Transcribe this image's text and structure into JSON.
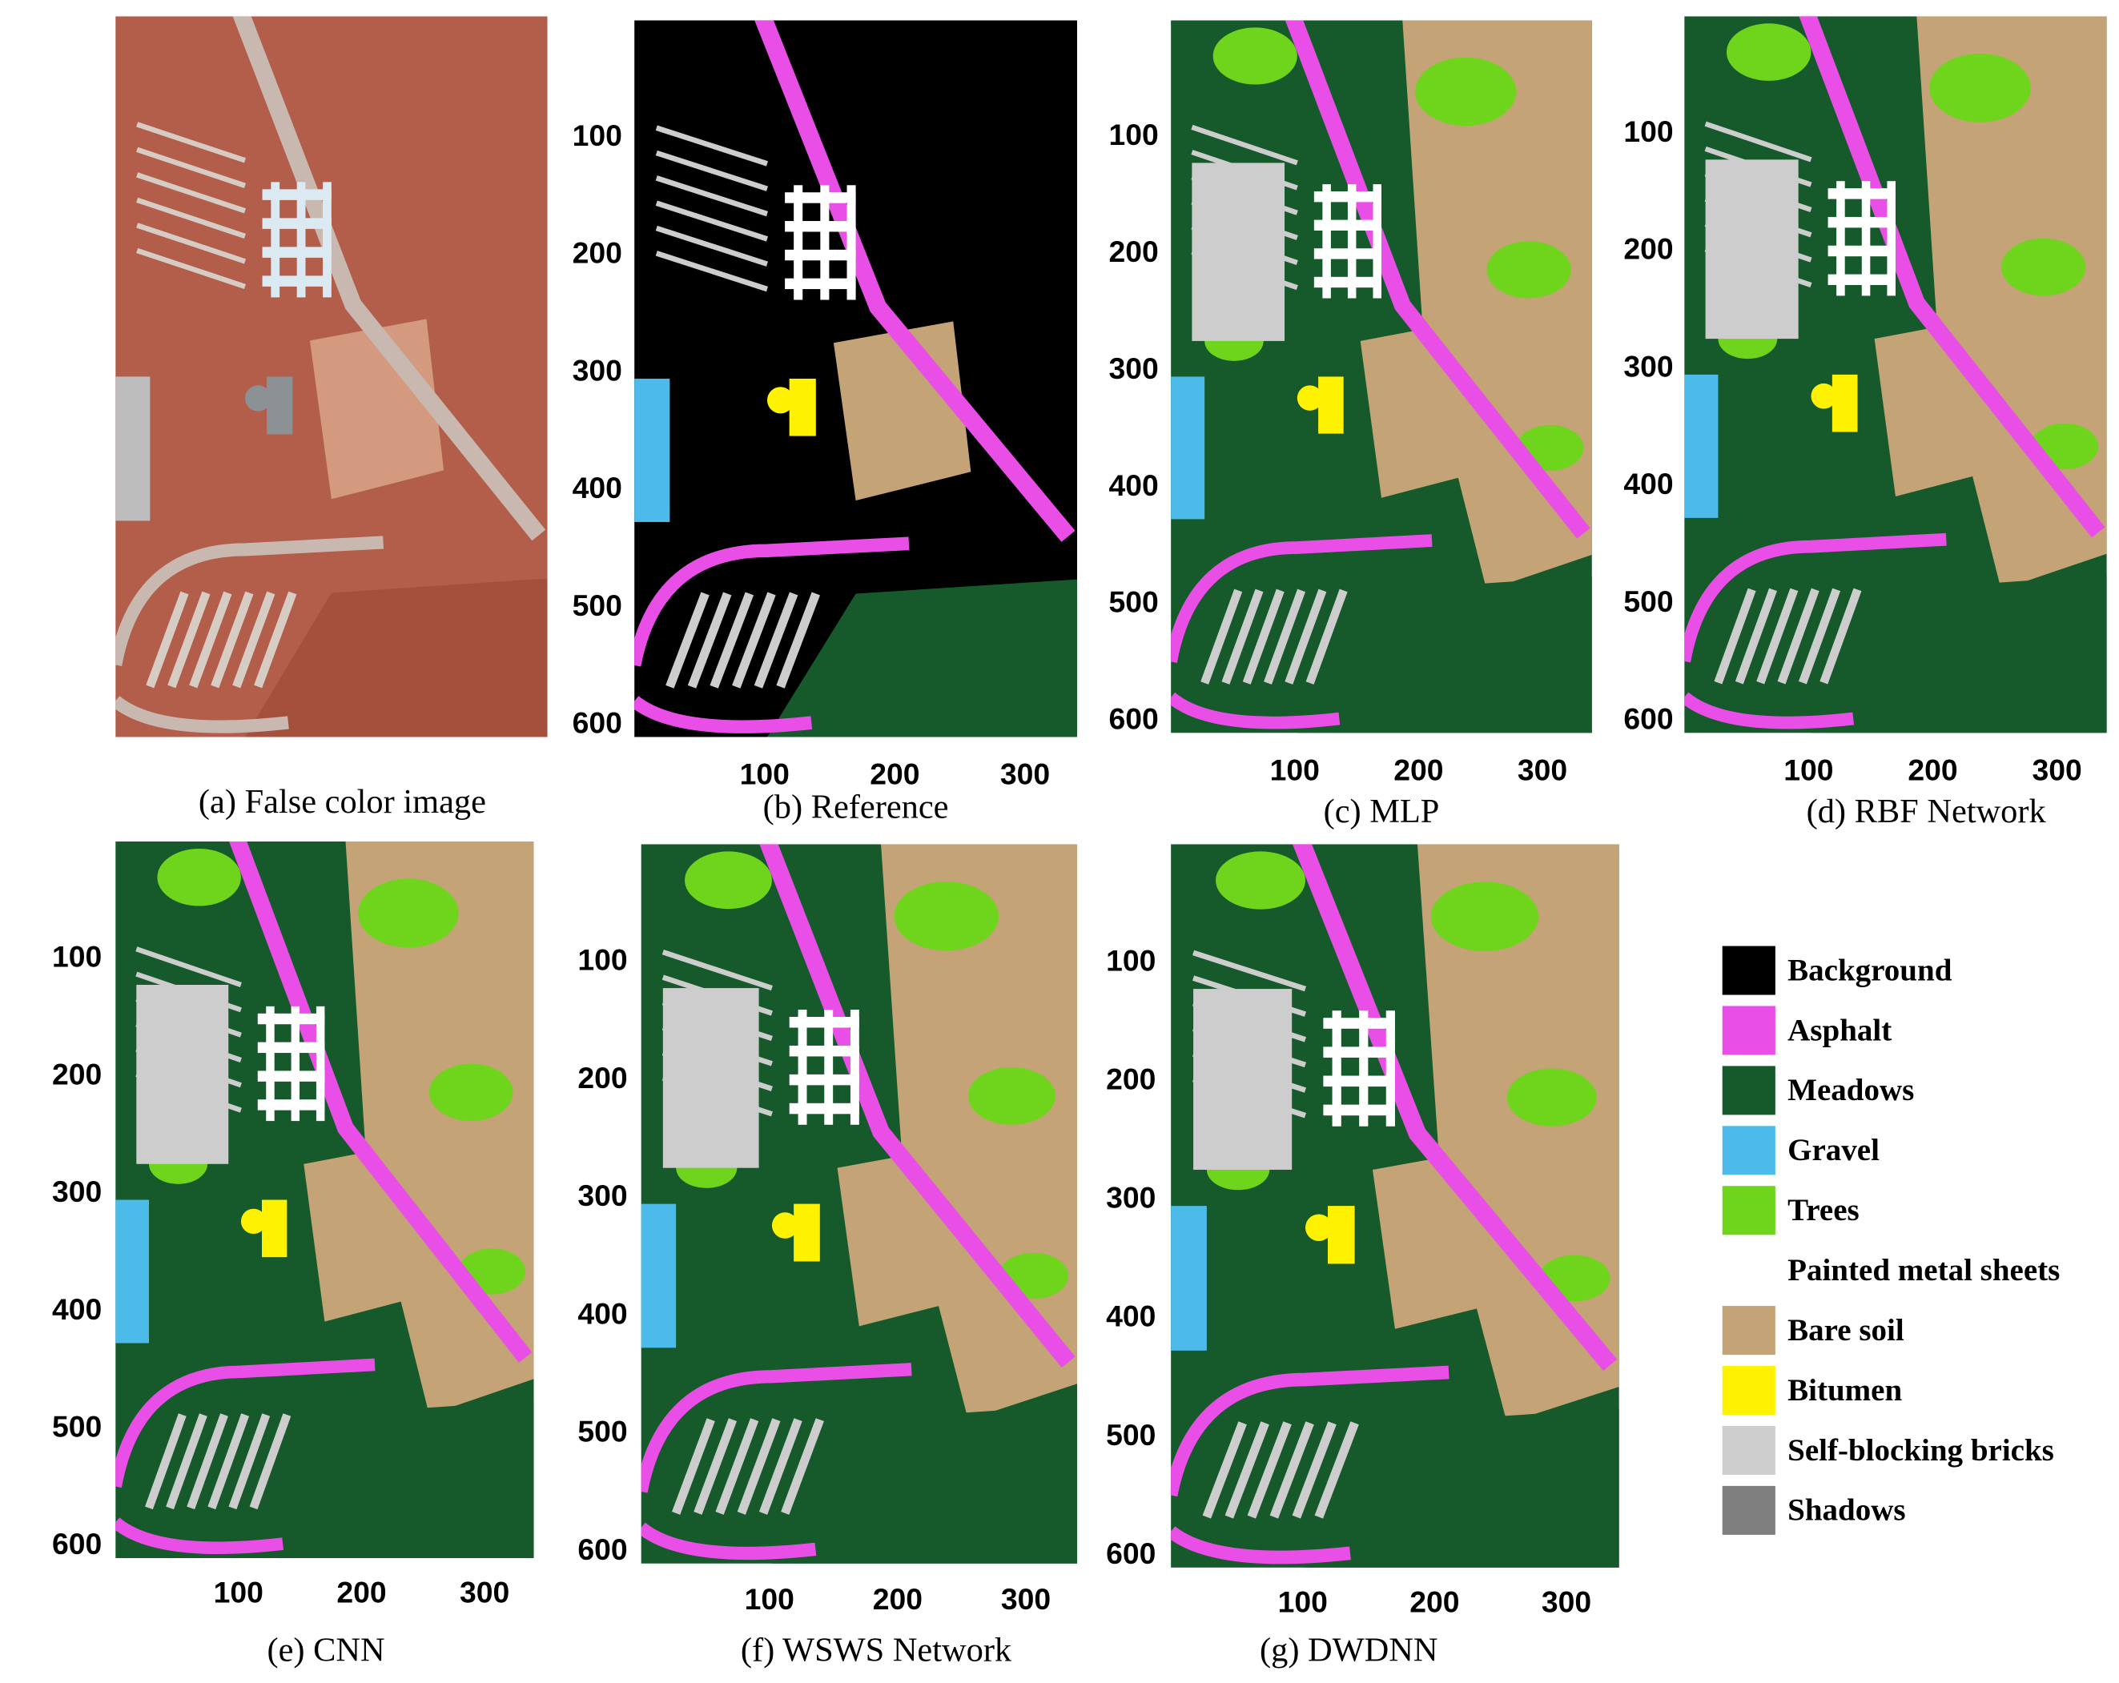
{
  "panels": [
    {
      "caption": "(a) False color image"
    },
    {
      "caption": "(b)   Reference",
      "yticks": [
        100,
        200,
        300,
        400,
        500,
        600
      ],
      "xticks": [
        100,
        200,
        300
      ]
    },
    {
      "caption": "(c) MLP",
      "yticks": [
        100,
        200,
        300,
        400,
        500,
        600
      ],
      "xticks": [
        100,
        200,
        300
      ]
    },
    {
      "caption": "(d) RBF Network",
      "yticks": [
        100,
        200,
        300,
        400,
        500,
        600
      ],
      "xticks": [
        100,
        200,
        300
      ]
    },
    {
      "caption": "(e) CNN",
      "yticks": [
        100,
        200,
        300,
        400,
        500,
        600
      ],
      "xticks": [
        100,
        200,
        300
      ]
    },
    {
      "caption": "(f) WSWS Network",
      "yticks": [
        100,
        200,
        300,
        400,
        500,
        600
      ],
      "xticks": [
        100,
        200,
        300
      ]
    },
    {
      "caption": "(g) DWDNN",
      "yticks": [
        100,
        200,
        300,
        400,
        500,
        600
      ],
      "xticks": [
        100,
        200,
        300
      ]
    }
  ],
  "legend": [
    {
      "label": "Background",
      "color": "#000000"
    },
    {
      "label": "Asphalt",
      "color": "#e94ee6"
    },
    {
      "label": "Meadows",
      "color": "#165a2b"
    },
    {
      "label": "Gravel",
      "color": "#4dbbea"
    },
    {
      "label": "Trees",
      "color": "#6fd41c"
    },
    {
      "label": "Painted metal sheets",
      "color": "#ffffff"
    },
    {
      "label": "Bare soil",
      "color": "#c4a377"
    },
    {
      "label": "Bitumen",
      "color": "#fff200"
    },
    {
      "label": "Self-blocking bricks",
      "color": "#cdcdcd"
    },
    {
      "label": "Shadows",
      "color": "#7f7f7f"
    }
  ]
}
